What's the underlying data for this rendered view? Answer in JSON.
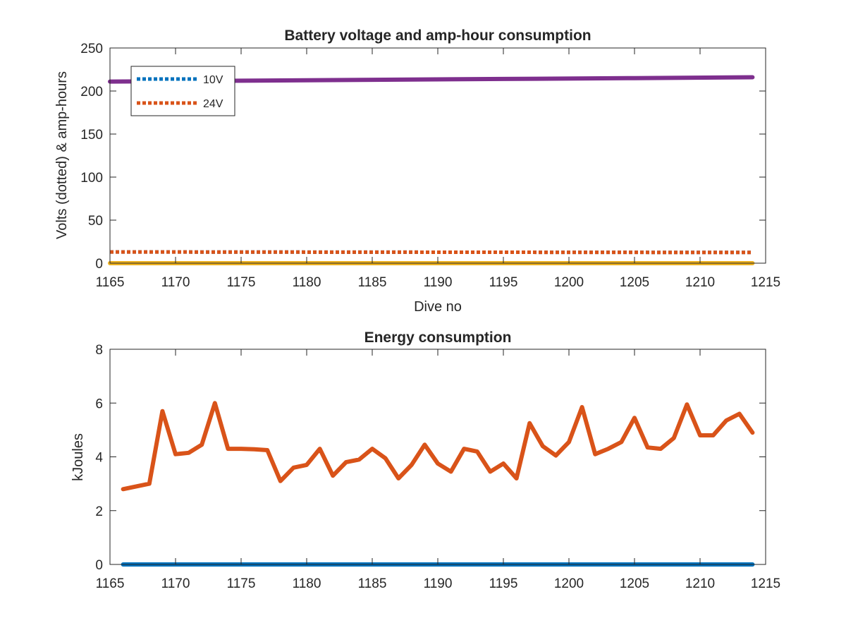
{
  "chart_data": [
    {
      "type": "line",
      "title": "Battery voltage and amp-hour consumption",
      "xlabel": "Dive no",
      "ylabel": "Volts (dotted) & amp-hours",
      "xlim": [
        1165,
        1215
      ],
      "ylim": [
        0,
        250
      ],
      "xticks": [
        "1165",
        "1170",
        "1175",
        "1180",
        "1185",
        "1190",
        "1195",
        "1200",
        "1205",
        "1210",
        "1215"
      ],
      "yticks": [
        "0",
        "50",
        "100",
        "150",
        "200",
        "250"
      ],
      "grid": false,
      "legend_position": "top-left",
      "series": [
        {
          "name": "10V",
          "style": "dotted",
          "color": "#0072BD",
          "x": [
            1165,
            1214
          ],
          "y": [
            13,
            12.5
          ]
        },
        {
          "name": "24V",
          "style": "dotted",
          "color": "#D95319",
          "x": [
            1165,
            1214
          ],
          "y": [
            13,
            12.5
          ]
        },
        {
          "style": "solid",
          "color": "#EDB120",
          "x": [
            1165,
            1214
          ],
          "y": [
            0,
            0
          ]
        },
        {
          "style": "solid",
          "color": "#7E2F8E",
          "x": [
            1165,
            1175,
            1185,
            1195,
            1205,
            1214
          ],
          "y": [
            211,
            212,
            213,
            214,
            215,
            216
          ]
        }
      ]
    },
    {
      "type": "line",
      "title": "Energy consumption",
      "xlabel": "",
      "ylabel": "kJoules",
      "xlim": [
        1165,
        1215
      ],
      "ylim": [
        0,
        8
      ],
      "xticks": [
        "1165",
        "1170",
        "1175",
        "1180",
        "1185",
        "1190",
        "1195",
        "1200",
        "1205",
        "1210",
        "1215"
      ],
      "yticks": [
        "0",
        "2",
        "4",
        "6",
        "8"
      ],
      "grid": false,
      "series": [
        {
          "style": "solid",
          "color": "#0072BD",
          "x": [
            1166,
            1214
          ],
          "y": [
            0,
            0
          ]
        },
        {
          "style": "solid",
          "color": "#D95319",
          "x": [
            1166,
            1167,
            1168,
            1169,
            1170,
            1171,
            1172,
            1173,
            1174,
            1175,
            1176,
            1177,
            1178,
            1179,
            1180,
            1181,
            1182,
            1183,
            1184,
            1185,
            1186,
            1187,
            1188,
            1189,
            1190,
            1191,
            1192,
            1193,
            1194,
            1195,
            1196,
            1197,
            1198,
            1199,
            1200,
            1201,
            1202,
            1203,
            1204,
            1205,
            1206,
            1207,
            1208,
            1209,
            1210,
            1211,
            1212,
            1213,
            1214
          ],
          "y": [
            2.8,
            2.9,
            3.0,
            5.7,
            4.1,
            4.15,
            4.45,
            6.0,
            4.3,
            4.3,
            4.28,
            4.25,
            3.1,
            3.6,
            3.7,
            4.3,
            3.3,
            3.8,
            3.9,
            4.3,
            3.95,
            3.2,
            3.7,
            4.45,
            3.75,
            3.45,
            4.3,
            4.2,
            3.45,
            3.75,
            3.2,
            5.25,
            4.4,
            4.05,
            4.55,
            5.85,
            4.1,
            4.3,
            4.55,
            5.45,
            4.35,
            4.3,
            4.7,
            5.95,
            4.8,
            4.8,
            5.35,
            5.6,
            4.9
          ]
        }
      ]
    }
  ]
}
